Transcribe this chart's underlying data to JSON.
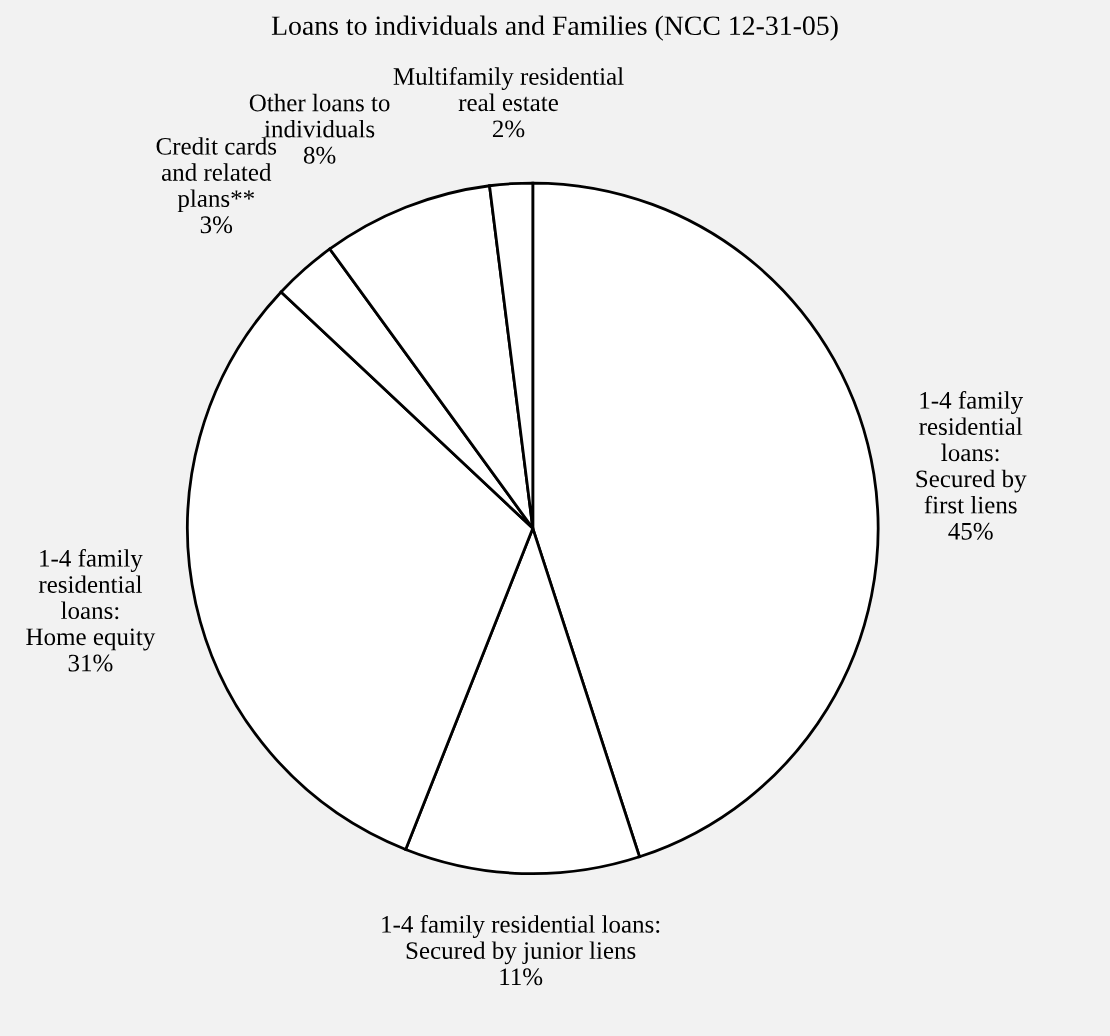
{
  "chart_data": {
    "type": "pie",
    "title": "Loans to individuals and Families (NCC 12-31-05)",
    "categories": [
      "1-4 family\nresidential\nloans:\nSecured by\nfirst liens",
      "1-4 family residential loans:\nSecured by junior liens",
      "1-4 family\nresidential\nloans:\nHome equity",
      "Credit cards\nand related\nplans**",
      "Other loans to\nindividuals",
      "Multifamily residential\nreal estate"
    ],
    "values": [
      45,
      11,
      31,
      3,
      8,
      2
    ],
    "value_labels": [
      "45%",
      "11%",
      "31%",
      "3%",
      "8%",
      "2%"
    ],
    "colors": [
      "#ffffff",
      "#ffffff",
      "#ffffff",
      "#ffffff",
      "#ffffff",
      "#ffffff"
    ]
  }
}
